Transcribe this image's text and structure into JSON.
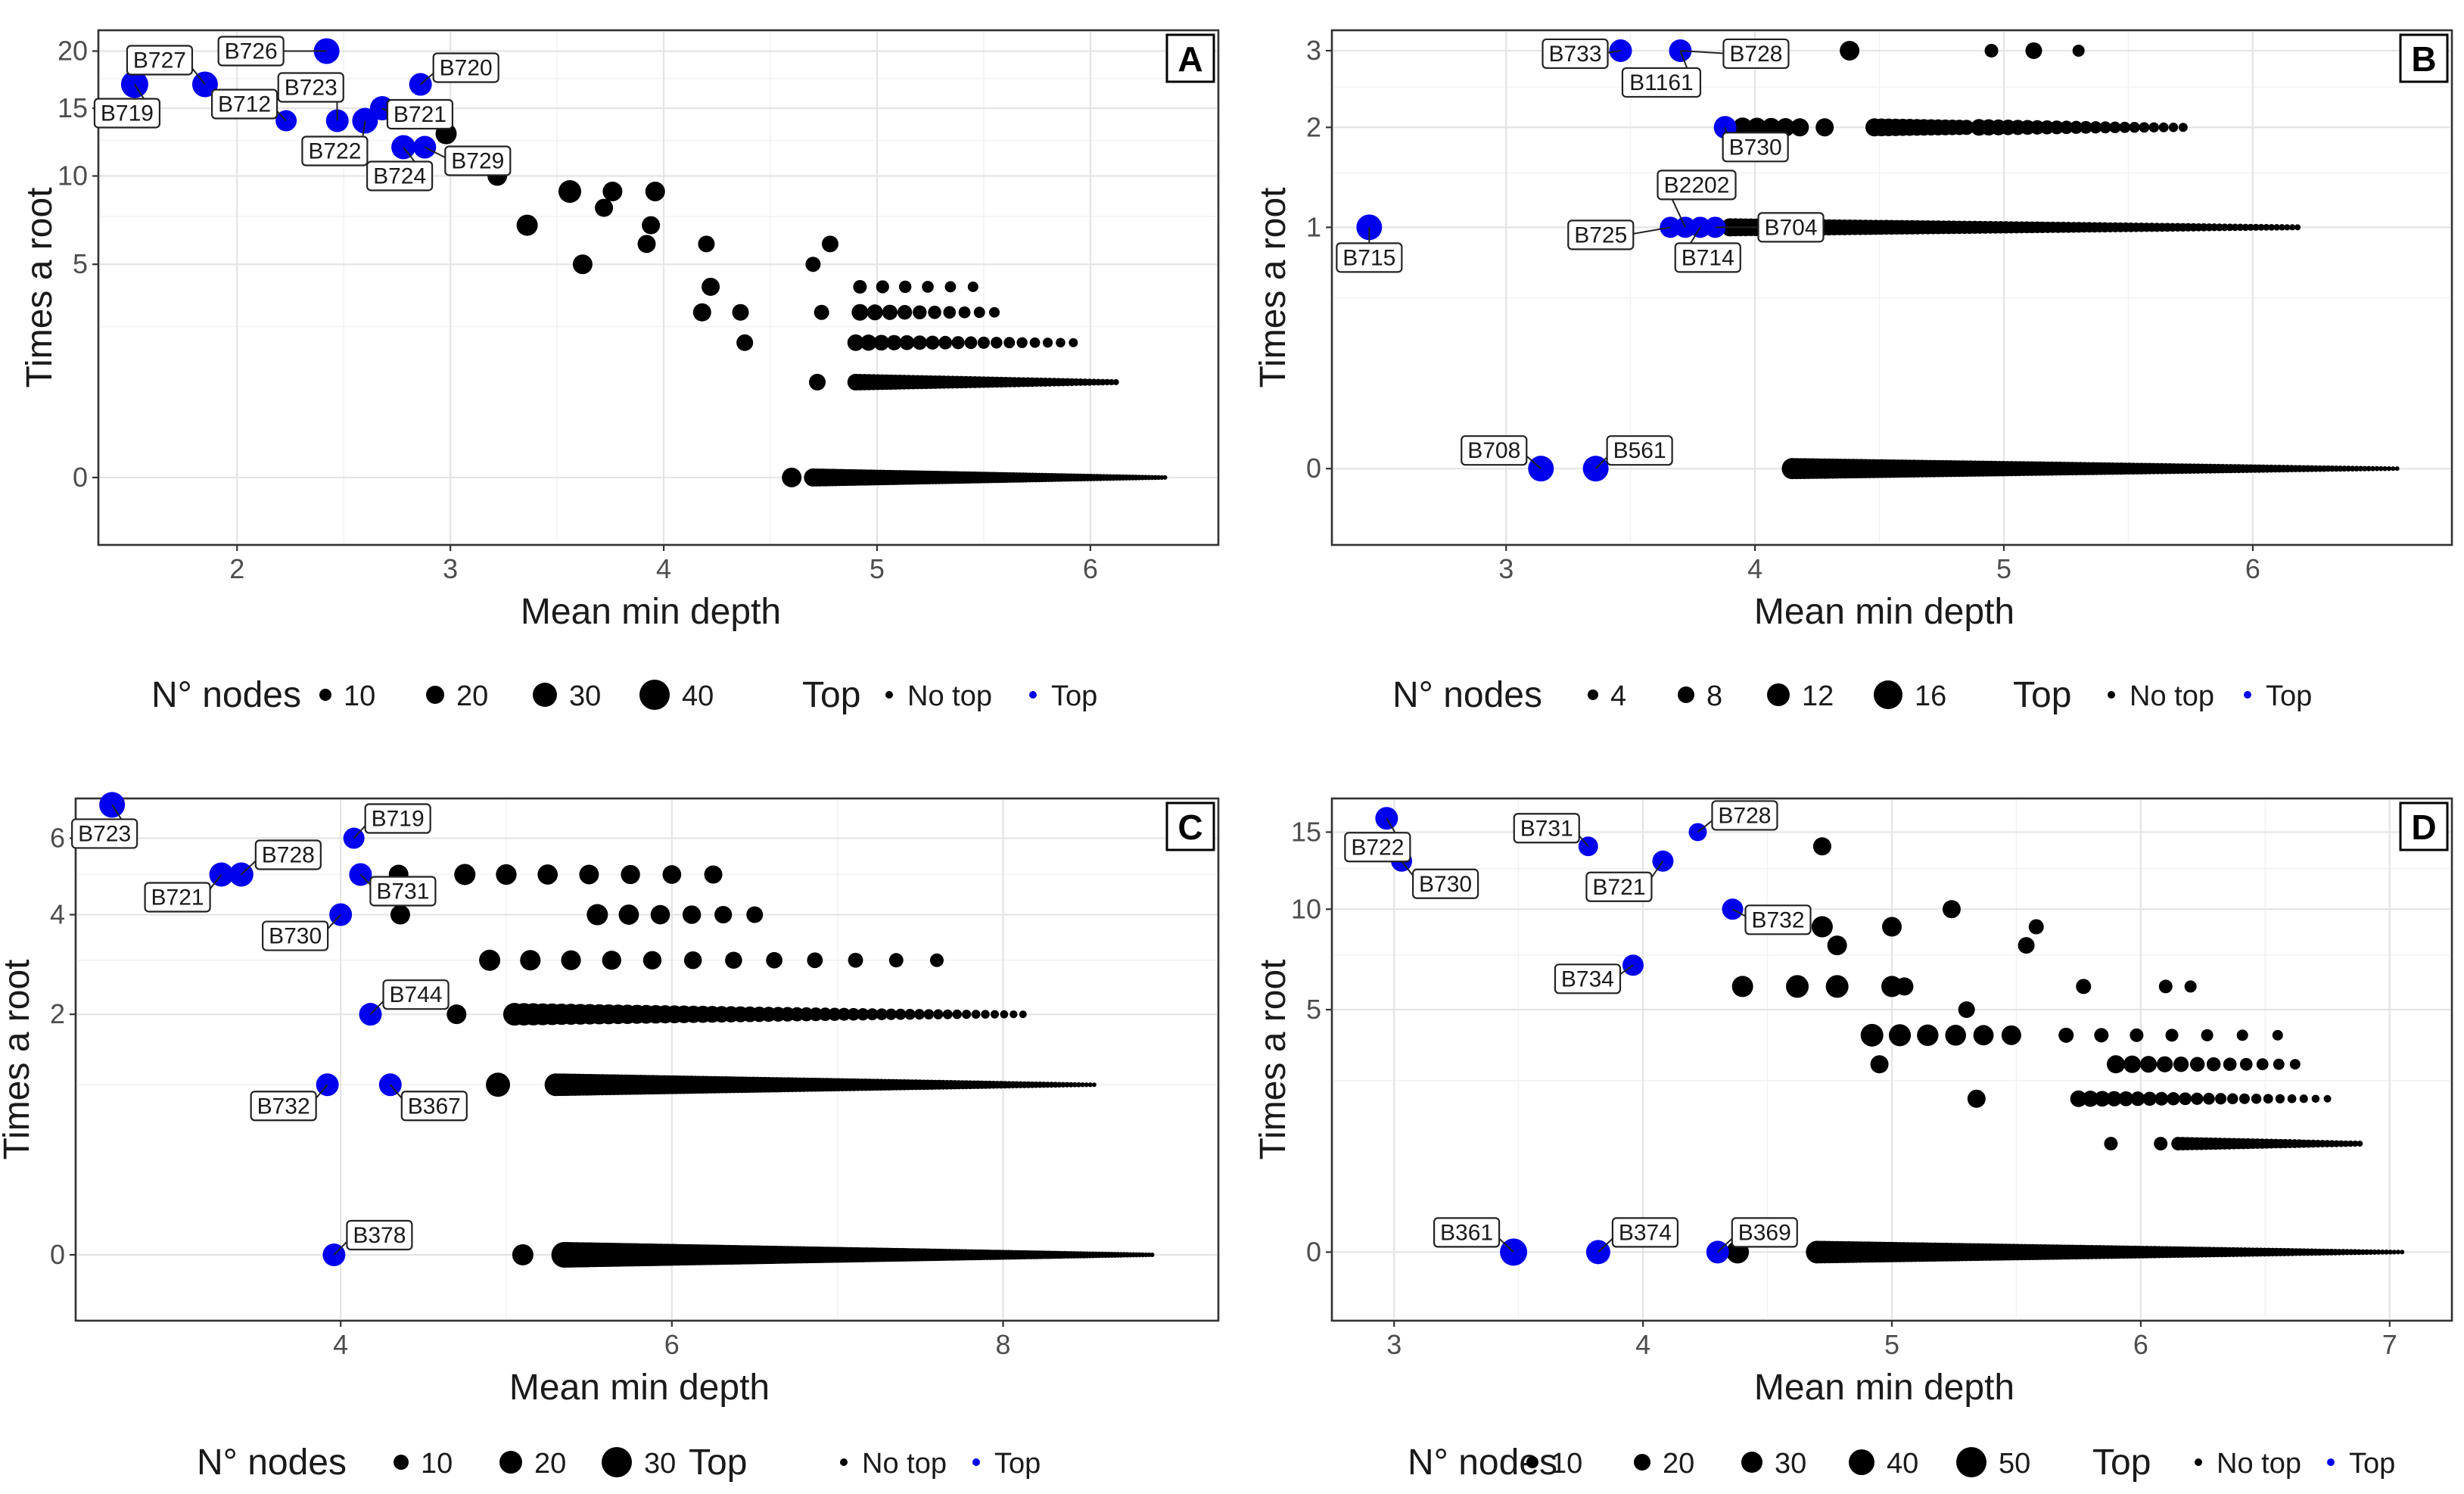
{
  "colors": {
    "top": "#0000ee",
    "no_top": "#000000"
  },
  "chart_data": [
    {
      "type": "scatter",
      "panel": "A",
      "xlabel": "Mean min depth",
      "ylabel": "Times a root",
      "xlim": [
        1.35,
        6.6
      ],
      "ylim": [
        -0.5,
        22
      ],
      "y_scale": "sqrt",
      "x_ticks": [
        2,
        3,
        4,
        5,
        6
      ],
      "y_ticks": [
        0,
        5,
        10,
        15,
        20
      ],
      "legend": {
        "size_title": "N° nodes",
        "size_values": [
          10,
          20,
          30,
          40
        ],
        "color_title": "Top",
        "color_entries": [
          "No top",
          "Top"
        ]
      },
      "top_points": [
        {
          "label": "B719",
          "x": 1.52,
          "y": 17,
          "size": 36
        },
        {
          "label": "B727",
          "x": 1.85,
          "y": 17,
          "size": 34
        },
        {
          "label": "B726",
          "x": 2.42,
          "y": 20,
          "size": 34
        },
        {
          "label": "B712",
          "x": 2.23,
          "y": 14,
          "size": 28
        },
        {
          "label": "B723",
          "x": 2.47,
          "y": 14,
          "size": 30
        },
        {
          "label": "B720",
          "x": 2.86,
          "y": 17,
          "size": 30
        },
        {
          "label": "B722",
          "x": 2.6,
          "y": 14,
          "size": 34
        },
        {
          "label": "B721",
          "x": 2.68,
          "y": 15,
          "size": 32
        },
        {
          "label": "B724",
          "x": 2.78,
          "y": 12,
          "size": 32
        },
        {
          "label": "B729",
          "x": 2.88,
          "y": 12,
          "size": 30
        }
      ],
      "no_top_points": [
        {
          "x": 2.98,
          "y": 13,
          "size": 28
        },
        {
          "x": 3.22,
          "y": 10,
          "size": 26
        },
        {
          "x": 3.36,
          "y": 7,
          "size": 28
        },
        {
          "x": 3.56,
          "y": 9,
          "size": 30
        },
        {
          "x": 3.62,
          "y": 5,
          "size": 26
        },
        {
          "x": 3.72,
          "y": 8,
          "size": 24
        },
        {
          "x": 3.76,
          "y": 9,
          "size": 26
        },
        {
          "x": 3.96,
          "y": 9,
          "size": 26
        },
        {
          "x": 3.94,
          "y": 7,
          "size": 24
        },
        {
          "x": 3.92,
          "y": 6,
          "size": 24
        },
        {
          "x": 4.2,
          "y": 6,
          "size": 22
        },
        {
          "x": 4.22,
          "y": 4,
          "size": 24
        },
        {
          "x": 4.18,
          "y": 3,
          "size": 24
        },
        {
          "x": 4.36,
          "y": 3,
          "size": 22
        },
        {
          "x": 4.38,
          "y": 2,
          "size": 22
        },
        {
          "x": 4.7,
          "y": 5,
          "size": 20
        },
        {
          "x": 4.78,
          "y": 6,
          "size": 22
        },
        {
          "x": 4.74,
          "y": 3,
          "size": 20
        },
        {
          "x": 4.72,
          "y": 1,
          "size": 22
        },
        {
          "x": 4.6,
          "y": 0,
          "size": 26
        }
      ],
      "no_top_rows": [
        {
          "y": 4,
          "x_start": 4.92,
          "x_end": 5.45,
          "count": 6,
          "size_start": 18,
          "size_end": 14
        },
        {
          "y": 3,
          "x_start": 4.92,
          "x_end": 5.55,
          "count": 10,
          "size_start": 22,
          "size_end": 14
        },
        {
          "y": 2,
          "x_start": 4.9,
          "x_end": 5.92,
          "count": 18,
          "size_start": 22,
          "size_end": 12
        },
        {
          "y": 1,
          "x_start": 4.9,
          "x_end": 6.12,
          "count": 60,
          "size_start": 22,
          "size_end": 8
        },
        {
          "y": 0,
          "x_start": 4.7,
          "x_end": 6.35,
          "count": 110,
          "size_start": 24,
          "size_end": 6
        }
      ]
    },
    {
      "type": "scatter",
      "panel": "B",
      "xlabel": "Mean min depth",
      "ylabel": "Times a root",
      "xlim": [
        2.3,
        6.8
      ],
      "ylim": [
        -0.1,
        3.3
      ],
      "y_scale": "sqrt",
      "x_ticks": [
        3,
        4,
        5,
        6
      ],
      "y_ticks": [
        0,
        1,
        2,
        3
      ],
      "legend": {
        "size_title": "N° nodes",
        "size_values": [
          4,
          8,
          12,
          16
        ],
        "color_title": "Top",
        "color_entries": [
          "No top",
          "Top"
        ]
      },
      "top_points": [
        {
          "label": "B733",
          "x": 3.46,
          "y": 3,
          "size": 30
        },
        {
          "label": "B728",
          "x": 3.7,
          "y": 3,
          "size": 30
        },
        {
          "label": "B1161",
          "x": 3.7,
          "y": 3,
          "size": 26
        },
        {
          "label": "B730",
          "x": 3.88,
          "y": 2,
          "size": 30
        },
        {
          "label": "B715",
          "x": 2.45,
          "y": 1,
          "size": 34
        },
        {
          "label": "B2202",
          "x": 3.72,
          "y": 1,
          "size": 28
        },
        {
          "label": "B725",
          "x": 3.66,
          "y": 1,
          "size": 28
        },
        {
          "label": "B714",
          "x": 3.78,
          "y": 1,
          "size": 28
        },
        {
          "label": "B704",
          "x": 3.84,
          "y": 1,
          "size": 28
        },
        {
          "label": "B708",
          "x": 3.14,
          "y": 0,
          "size": 34
        },
        {
          "label": "B561",
          "x": 3.36,
          "y": 0,
          "size": 34
        }
      ],
      "no_top_points": [
        {
          "x": 4.38,
          "y": 3,
          "size": 26
        },
        {
          "x": 4.95,
          "y": 3,
          "size": 18
        },
        {
          "x": 5.12,
          "y": 3,
          "size": 22
        },
        {
          "x": 5.3,
          "y": 3,
          "size": 16
        },
        {
          "x": 4.28,
          "y": 2,
          "size": 24
        }
      ],
      "no_top_rows": [
        {
          "y": 2,
          "x_start": 3.95,
          "x_end": 4.18,
          "count": 5,
          "size_start": 26,
          "size_end": 24
        },
        {
          "y": 2,
          "x_start": 4.48,
          "x_end": 4.85,
          "count": 14,
          "size_start": 24,
          "size_end": 20
        },
        {
          "y": 2,
          "x_start": 4.9,
          "x_end": 5.72,
          "count": 22,
          "size_start": 22,
          "size_end": 12
        },
        {
          "y": 1,
          "x_start": 3.9,
          "x_end": 6.18,
          "count": 110,
          "size_start": 24,
          "size_end": 8
        },
        {
          "y": 0,
          "x_start": 4.15,
          "x_end": 6.58,
          "count": 150,
          "size_start": 28,
          "size_end": 6
        }
      ]
    },
    {
      "type": "scatter",
      "panel": "C",
      "xlabel": "Mean min depth",
      "ylabel": "Times a root",
      "xlim": [
        2.4,
        9.3
      ],
      "ylim": [
        -0.15,
        7.2
      ],
      "y_scale": "sqrt",
      "x_ticks": [
        4,
        6,
        8
      ],
      "y_ticks": [
        0,
        2,
        4,
        6
      ],
      "legend": {
        "size_title": "N° nodes",
        "size_values": [
          10,
          20,
          30
        ],
        "color_title": "Top",
        "color_entries": [
          "No top",
          "Top"
        ]
      },
      "top_points": [
        {
          "label": "B723",
          "x": 2.62,
          "y": 7,
          "size": 34
        },
        {
          "label": "B728",
          "x": 3.4,
          "y": 5,
          "size": 32
        },
        {
          "label": "B721",
          "x": 3.28,
          "y": 5,
          "size": 32
        },
        {
          "label": "B719",
          "x": 4.08,
          "y": 6,
          "size": 28
        },
        {
          "label": "B731",
          "x": 4.12,
          "y": 5,
          "size": 30
        },
        {
          "label": "B730",
          "x": 4.0,
          "y": 4,
          "size": 30
        },
        {
          "label": "B744",
          "x": 4.18,
          "y": 2,
          "size": 30
        },
        {
          "label": "B732",
          "x": 3.92,
          "y": 1,
          "size": 30
        },
        {
          "label": "B367",
          "x": 4.3,
          "y": 1,
          "size": 30
        },
        {
          "label": "B378",
          "x": 3.96,
          "y": 0,
          "size": 30
        }
      ],
      "no_top_points": [
        {
          "x": 4.35,
          "y": 5,
          "size": 26
        },
        {
          "x": 4.36,
          "y": 4,
          "size": 26
        },
        {
          "x": 4.7,
          "y": 2,
          "size": 26
        },
        {
          "x": 5.1,
          "y": 0,
          "size": 28
        },
        {
          "x": 4.95,
          "y": 1,
          "size": 32
        }
      ],
      "no_top_rows": [
        {
          "y": 5,
          "x_start": 4.75,
          "x_end": 6.25,
          "count": 7,
          "size_start": 28,
          "size_end": 24
        },
        {
          "y": 4,
          "x_start": 5.55,
          "x_end": 6.5,
          "count": 6,
          "size_start": 28,
          "size_end": 22
        },
        {
          "y": 3,
          "x_start": 4.9,
          "x_end": 7.6,
          "count": 12,
          "size_start": 28,
          "size_end": 18
        },
        {
          "y": 2,
          "x_start": 5.05,
          "x_end": 8.12,
          "count": 55,
          "size_start": 30,
          "size_end": 10
        },
        {
          "y": 1,
          "x_start": 5.3,
          "x_end": 8.55,
          "count": 140,
          "size_start": 30,
          "size_end": 6
        },
        {
          "y": 0,
          "x_start": 5.35,
          "x_end": 8.9,
          "count": 190,
          "size_start": 34,
          "size_end": 6
        }
      ]
    },
    {
      "type": "scatter",
      "panel": "D",
      "xlabel": "Mean min depth",
      "ylabel": "Times a root",
      "xlim": [
        2.75,
        7.25
      ],
      "ylim": [
        -0.4,
        17.5
      ],
      "y_scale": "sqrt",
      "x_ticks": [
        3,
        4,
        5,
        6,
        7
      ],
      "y_ticks": [
        0,
        5,
        10,
        15
      ],
      "legend": {
        "size_title": "N° nodes",
        "size_values": [
          10,
          20,
          30,
          40,
          50
        ],
        "color_title": "Top",
        "color_entries": [
          "No top",
          "Top"
        ]
      },
      "top_points": [
        {
          "label": "B722",
          "x": 2.97,
          "y": 16,
          "size": 30
        },
        {
          "label": "B730",
          "x": 3.03,
          "y": 13,
          "size": 28
        },
        {
          "label": "B731",
          "x": 3.78,
          "y": 14,
          "size": 26
        },
        {
          "label": "B721",
          "x": 4.08,
          "y": 13,
          "size": 28
        },
        {
          "label": "B728",
          "x": 4.22,
          "y": 15,
          "size": 24
        },
        {
          "label": "B732",
          "x": 4.36,
          "y": 10,
          "size": 28
        },
        {
          "label": "B734",
          "x": 3.96,
          "y": 7,
          "size": 28
        },
        {
          "label": "B361",
          "x": 3.48,
          "y": 0,
          "size": 36
        },
        {
          "label": "B374",
          "x": 3.82,
          "y": 0,
          "size": 32
        },
        {
          "label": "B369",
          "x": 4.3,
          "y": 0,
          "size": 30
        }
      ],
      "no_top_points": [
        {
          "x": 4.72,
          "y": 14,
          "size": 24
        },
        {
          "x": 4.72,
          "y": 9,
          "size": 28
        },
        {
          "x": 4.78,
          "y": 8,
          "size": 26
        },
        {
          "x": 5.0,
          "y": 9,
          "size": 26
        },
        {
          "x": 5.24,
          "y": 10,
          "size": 24
        },
        {
          "x": 5.58,
          "y": 9,
          "size": 20
        },
        {
          "x": 5.54,
          "y": 8,
          "size": 22
        },
        {
          "x": 4.4,
          "y": 6,
          "size": 28
        },
        {
          "x": 4.62,
          "y": 6,
          "size": 30
        },
        {
          "x": 4.78,
          "y": 6,
          "size": 30
        },
        {
          "x": 5.0,
          "y": 6,
          "size": 28
        },
        {
          "x": 5.05,
          "y": 6,
          "size": 24
        },
        {
          "x": 5.3,
          "y": 5,
          "size": 22
        },
        {
          "x": 5.77,
          "y": 6,
          "size": 20
        },
        {
          "x": 6.1,
          "y": 6,
          "size": 18
        },
        {
          "x": 6.2,
          "y": 6,
          "size": 16
        },
        {
          "x": 4.95,
          "y": 3,
          "size": 24
        },
        {
          "x": 5.34,
          "y": 2,
          "size": 24
        },
        {
          "x": 5.88,
          "y": 1,
          "size": 18
        },
        {
          "x": 6.08,
          "y": 1,
          "size": 18
        },
        {
          "x": 4.38,
          "y": 0,
          "size": 30
        }
      ],
      "no_top_rows": [
        {
          "y": 4,
          "x_start": 4.92,
          "x_end": 5.48,
          "count": 6,
          "size_start": 30,
          "size_end": 26
        },
        {
          "y": 4,
          "x_start": 5.7,
          "x_end": 6.55,
          "count": 7,
          "size_start": 20,
          "size_end": 14
        },
        {
          "y": 3,
          "x_start": 5.9,
          "x_end": 6.62,
          "count": 12,
          "size_start": 24,
          "size_end": 14
        },
        {
          "y": 2,
          "x_start": 5.75,
          "x_end": 6.75,
          "count": 22,
          "size_start": 22,
          "size_end": 10
        },
        {
          "y": 1,
          "x_start": 6.15,
          "x_end": 6.88,
          "count": 40,
          "size_start": 18,
          "size_end": 8
        },
        {
          "y": 0,
          "x_start": 4.7,
          "x_end": 7.05,
          "count": 150,
          "size_start": 30,
          "size_end": 6
        }
      ]
    }
  ]
}
